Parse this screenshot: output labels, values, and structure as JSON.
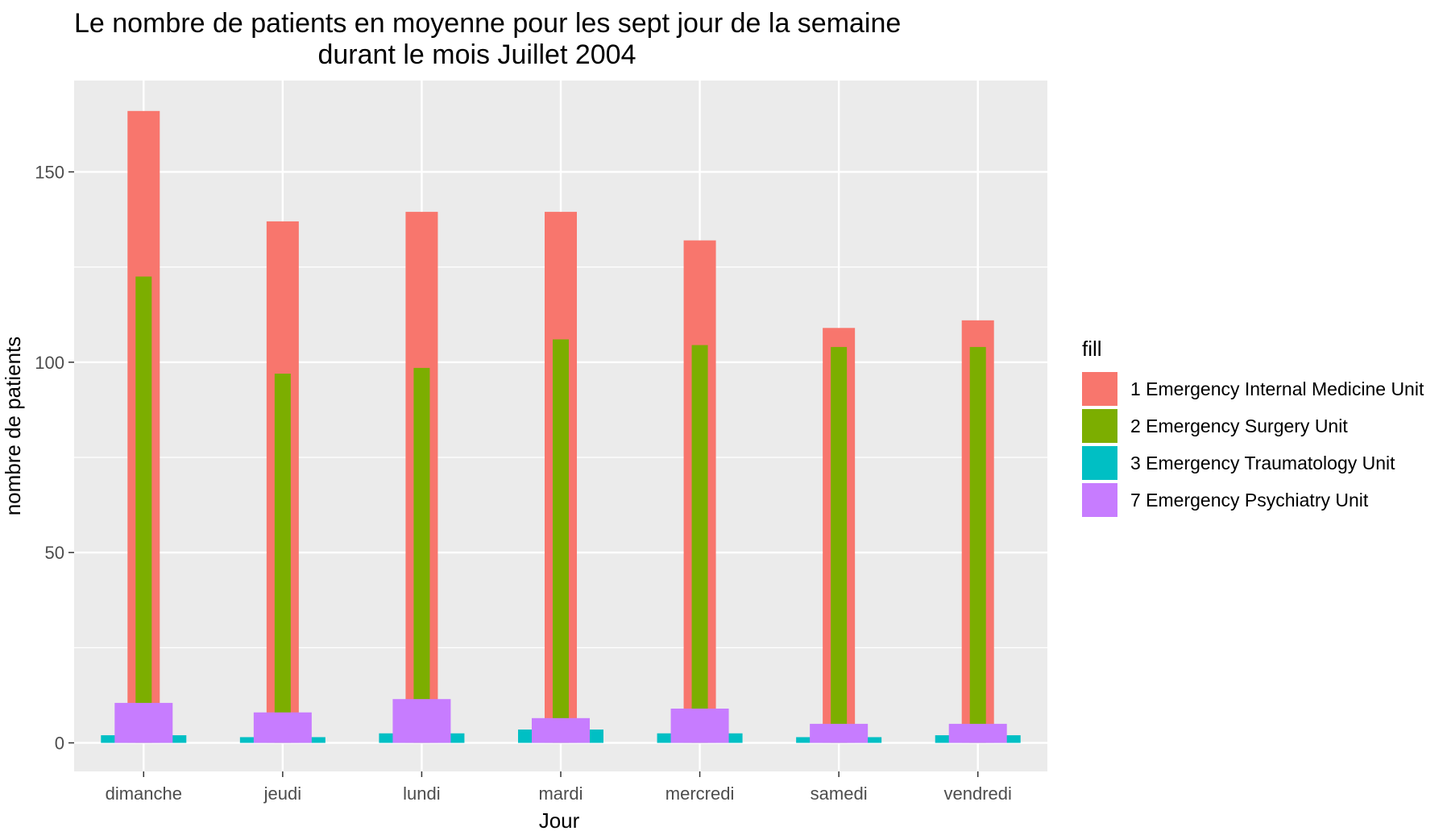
{
  "chart_data": {
    "type": "bar",
    "title": [
      "Le nombre de patients en moyenne pour les sept jour de la semaine",
      "durant le mois Juillet 2004"
    ],
    "xlabel": "Jour",
    "ylabel": "nombre de patients",
    "categories": [
      "dimanche",
      "jeudi",
      "lundi",
      "mardi",
      "mercredi",
      "samedi",
      "vendredi"
    ],
    "ylim": [
      -7.5,
      174
    ],
    "yticks": [
      0,
      50,
      100,
      150
    ],
    "grid": true,
    "legend": {
      "title": "fill",
      "position": "right"
    },
    "series": [
      {
        "name": "1 Emergency Internal Medicine Unit",
        "color": "#F8766D",
        "values": [
          166,
          137,
          139.5,
          139.5,
          132,
          109,
          111
        ]
      },
      {
        "name": "2 Emergency Surgery Unit",
        "color": "#7CAE00",
        "values": [
          122.5,
          97,
          98.5,
          106,
          104.5,
          104,
          104
        ]
      },
      {
        "name": "3 Emergency Traumatology Unit",
        "color": "#00BFC4",
        "values": [
          2,
          1.5,
          2.5,
          3.5,
          2.5,
          1.5,
          2
        ]
      },
      {
        "name": "7 Emergency Psychiatry Unit",
        "color": "#C77CFF",
        "values": [
          10.5,
          8,
          11.5,
          6.5,
          9,
          5,
          5
        ]
      }
    ]
  }
}
